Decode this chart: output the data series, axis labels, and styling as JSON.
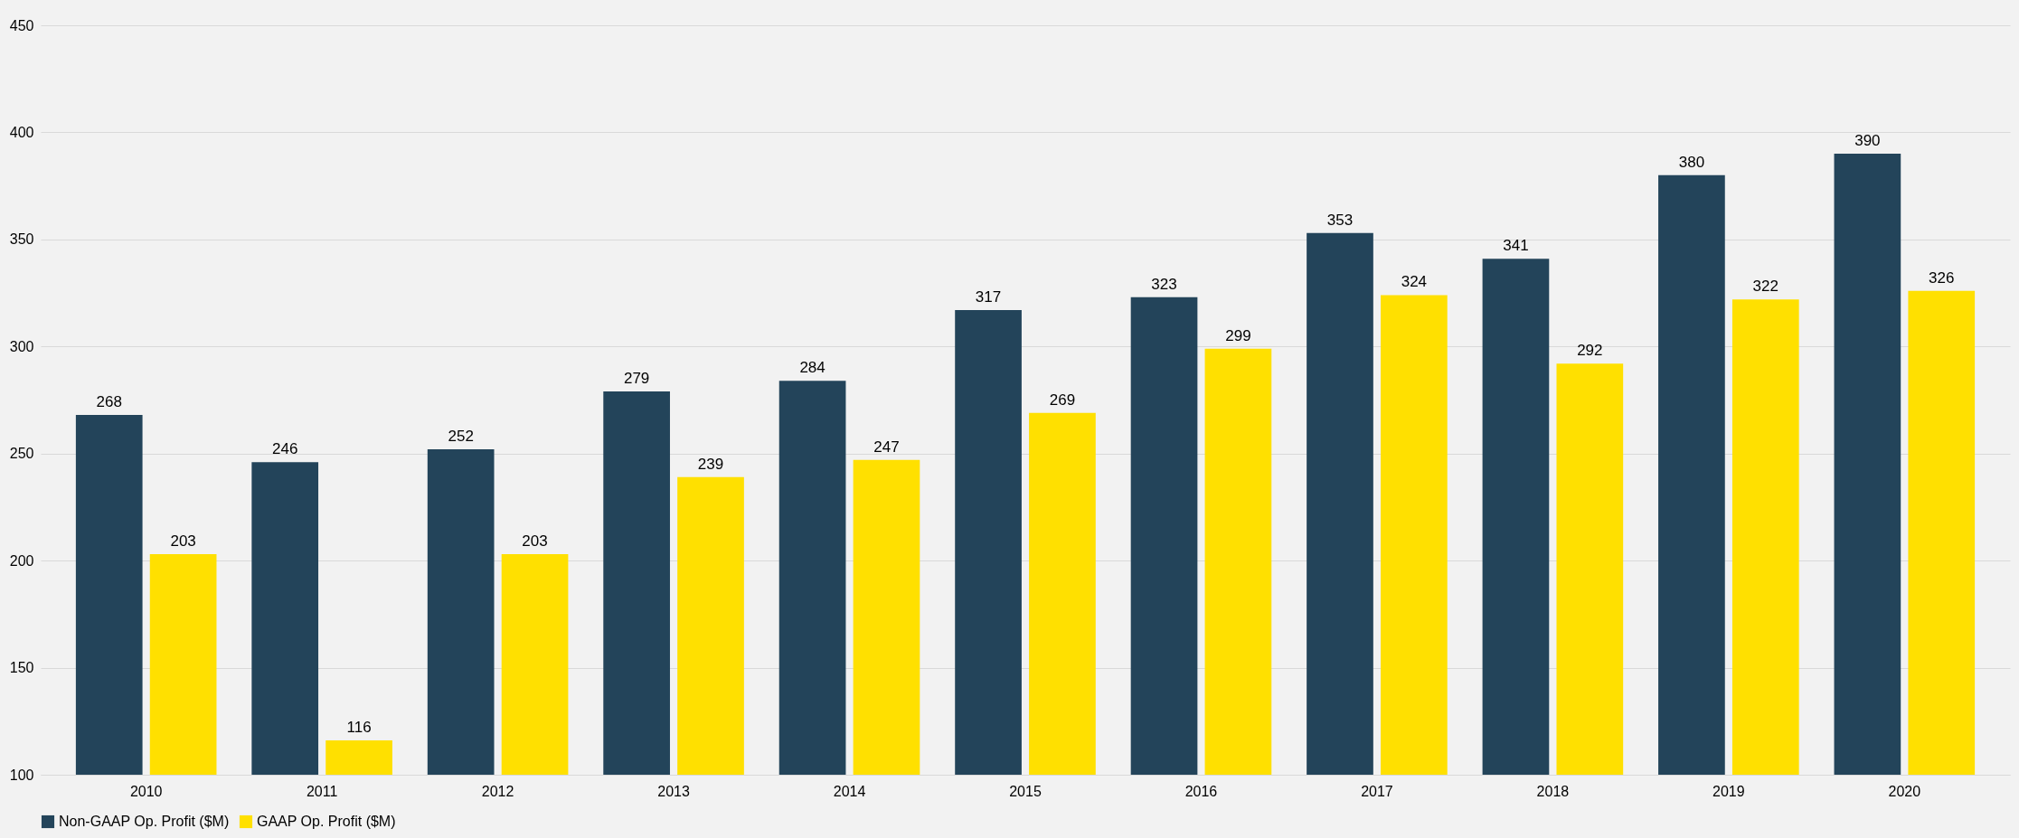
{
  "chart_data": {
    "type": "bar",
    "categories": [
      "2010",
      "2011",
      "2012",
      "2013",
      "2014",
      "2015",
      "2016",
      "2017",
      "2018",
      "2019",
      "2020"
    ],
    "series": [
      {
        "name": "Non-GAAP Op. Profit ($M)",
        "color": "#23445a",
        "values": [
          268,
          246,
          252,
          279,
          284,
          317,
          323,
          353,
          341,
          380,
          390
        ]
      },
      {
        "name": "GAAP Op. Profit ($M)",
        "color": "#ffe000",
        "values": [
          203,
          116,
          203,
          239,
          247,
          269,
          299,
          324,
          292,
          322,
          326
        ]
      }
    ],
    "ylim": [
      100,
      450
    ],
    "yticks": [
      100,
      150,
      200,
      250,
      300,
      350,
      400,
      450
    ],
    "grid": "y",
    "legend": "bottom",
    "data_labels": true
  }
}
